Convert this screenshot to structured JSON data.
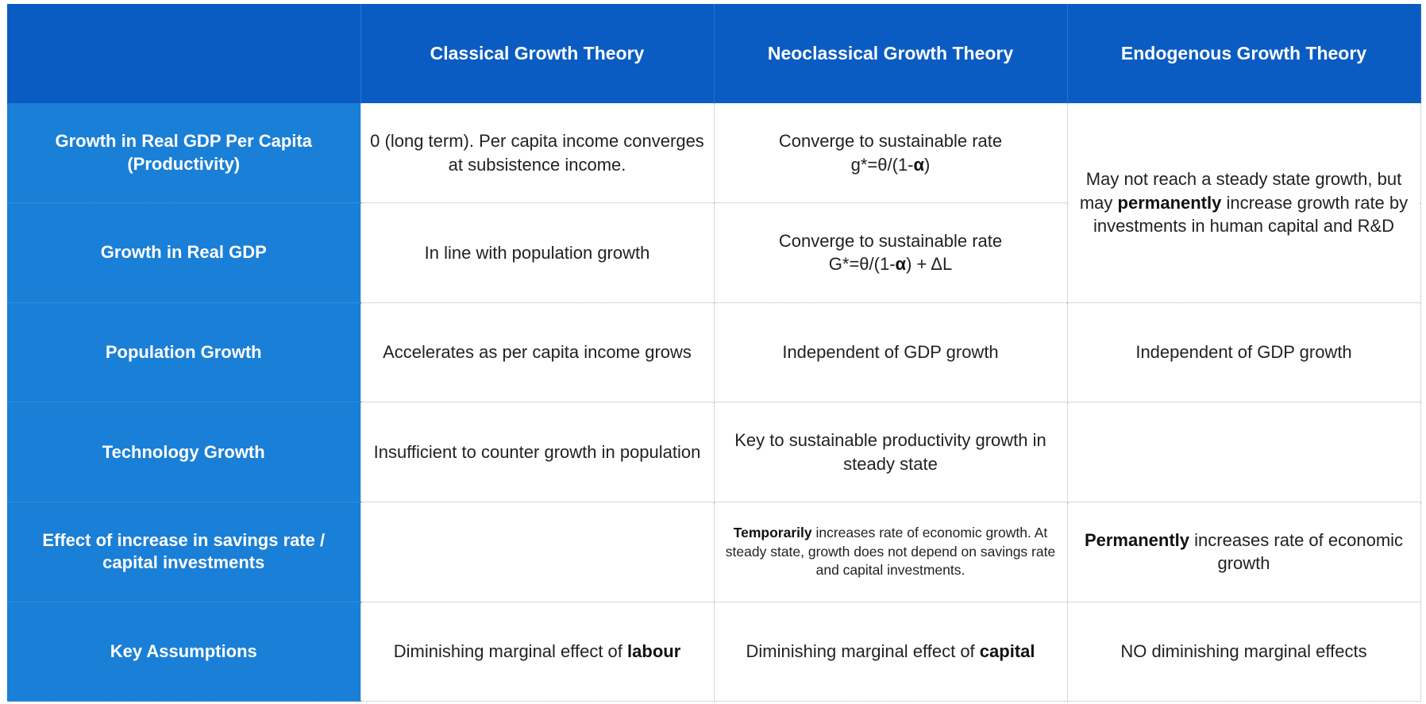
{
  "table": {
    "header": {
      "corner": "",
      "columns": [
        "Classical Growth Theory",
        "Neoclassical Growth Theory",
        "Endogenous Growth Theory"
      ]
    },
    "rows": {
      "productivity": {
        "label": "Growth in Real GDP Per Capita (Productivity)",
        "classical": "0 (long term). Per capita income converges at subsistence income.",
        "neoclassical_line1": "Converge to sustainable rate",
        "neoclassical_formula_pre": "g*=θ/(1-",
        "neoclassical_formula_alpha": "α",
        "neoclassical_formula_post": ")"
      },
      "endogenous_growth_merged": {
        "pre": "May not reach a steady state growth, but may ",
        "bold": "permanently",
        "post": " increase growth rate by investments in human capital and R&D"
      },
      "real_gdp": {
        "label": "Growth in Real GDP",
        "classical": "In line with population growth",
        "neoclassical_line1": "Converge to sustainable rate",
        "neoclassical_formula_pre": "G*=θ/(1-",
        "neoclassical_formula_alpha": "α",
        "neoclassical_formula_post": ") + ΔL"
      },
      "population": {
        "label": "Population Growth",
        "classical": "Accelerates as per capita income grows",
        "neoclassical": "Independent of GDP growth",
        "endogenous": "Independent of GDP growth"
      },
      "technology": {
        "label": "Technology Growth",
        "classical": "Insufficient to counter growth in population",
        "neoclassical": "Key to sustainable productivity growth in steady state",
        "endogenous": ""
      },
      "savings": {
        "label": "Effect of increase in savings rate / capital investments",
        "classical": "",
        "neoclassical_bold": "Temporarily",
        "neoclassical_post": " increases rate of economic growth. At steady state, growth does not depend on savings rate and capital investments.",
        "endogenous_bold": "Permanently",
        "endogenous_post": " increases rate of economic growth"
      },
      "assumptions": {
        "label": "Key Assumptions",
        "classical_pre": "Diminishing marginal effect of ",
        "classical_bold": "labour",
        "neoclassical_pre": "Diminishing marginal effect of ",
        "neoclassical_bold": "capital",
        "endogenous": "NO diminishing marginal effects"
      }
    }
  }
}
